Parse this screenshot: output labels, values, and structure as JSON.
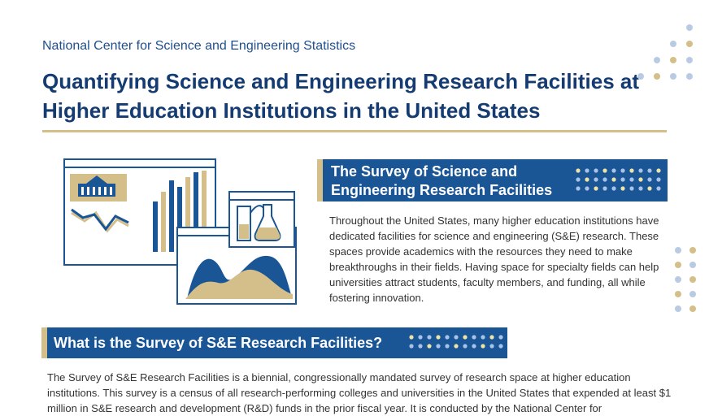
{
  "header": {
    "agency": "National Center for Science and Engineering Statistics",
    "title": "Quantifying Science and Engineering Research Facilities at Higher Education Institutions in the United States"
  },
  "section1": {
    "heading_line1": "The Survey of Science and",
    "heading_line2": "Engineering Research Facilities",
    "body": "Throughout the United States, many higher education institutions have dedicated facilities for science and engineering (S&E) research. These spaces provide academics with the resources they need to make breakthroughs in their fields. Having space for specialty fields can help universities attract students, faculty members, and funding, all while fostering innovation."
  },
  "section2": {
    "heading": "What is the Survey of S&E Research Facilities?",
    "body": "The Survey of S&E Research Facilities is a biennial, congressionally mandated survey of research space at higher education institutions. This survey is a census of all research-performing colleges and universities in the United States that expended at least $1 million in S&E research and development (R&D) funds in the prior fiscal year. It is conducted by the National Center for"
  },
  "colors": {
    "navy": "#143c72",
    "blue": "#1a5596",
    "gold": "#d4bf8a",
    "dot_blue": "#b9cbe3"
  },
  "icons": [
    "university-building-icon",
    "bar-chart-icon",
    "line-chart-icon",
    "lab-flask-icon",
    "area-chart-icon"
  ]
}
